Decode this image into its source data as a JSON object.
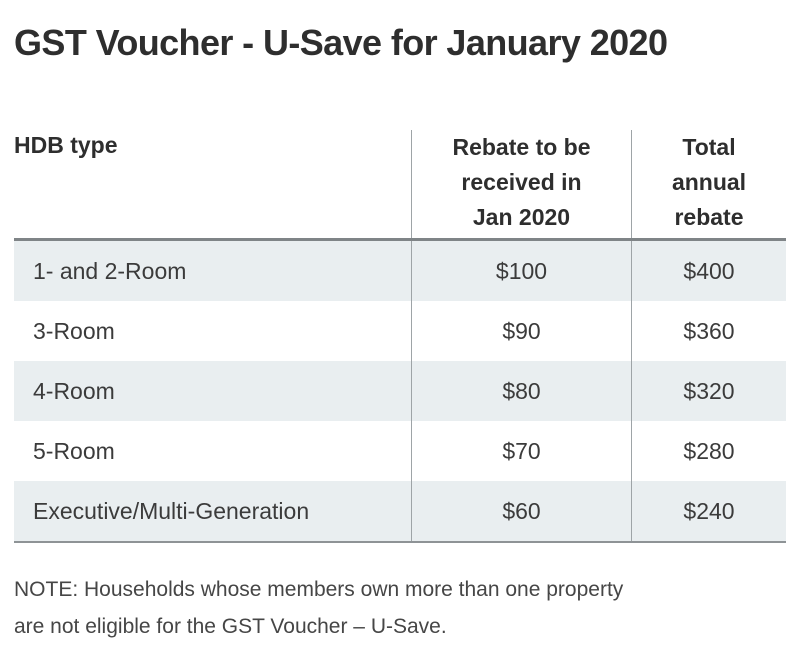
{
  "title": "GST Voucher - U-Save for January 2020",
  "table": {
    "header": {
      "col1": "HDB type",
      "col2_lines": [
        "Rebate to be",
        "received in",
        "Jan 2020"
      ],
      "col3_lines": [
        "Total",
        "annual",
        "rebate"
      ]
    },
    "rows": [
      {
        "hdb_type": "1- and 2-Room",
        "jan_rebate": "$100",
        "annual_rebate": "$400"
      },
      {
        "hdb_type": "3-Room",
        "jan_rebate": "$90",
        "annual_rebate": "$360"
      },
      {
        "hdb_type": "4-Room",
        "jan_rebate": "$80",
        "annual_rebate": "$320"
      },
      {
        "hdb_type": "5-Room",
        "jan_rebate": "$70",
        "annual_rebate": "$280"
      },
      {
        "hdb_type": "Executive/Multi-Generation",
        "jan_rebate": "$60",
        "annual_rebate": "$240"
      }
    ]
  },
  "note": {
    "line1": "NOTE: Households whose members own more than one property",
    "line2": "are not eligible for the GST Voucher – U-Save."
  },
  "colors": {
    "row_alt": "#e9eef0",
    "divider": "#9ea4a7",
    "border_top": "#7f8487",
    "border_bottom": "#8e9396",
    "title_text": "#2e2e2e",
    "body_text": "#3b3b3b",
    "note_text": "#464646"
  },
  "chart_data": {
    "type": "table",
    "title": "GST Voucher - U-Save for January 2020",
    "columns": [
      "HDB type",
      "Rebate to be received in Jan 2020",
      "Total annual rebate"
    ],
    "rows": [
      [
        "1- and 2-Room",
        100,
        400
      ],
      [
        "3-Room",
        90,
        360
      ],
      [
        "4-Room",
        80,
        320
      ],
      [
        "5-Room",
        70,
        280
      ],
      [
        "Executive/Multi-Generation",
        60,
        240
      ]
    ],
    "units": "$",
    "note": "NOTE: Households whose members own more than one property are not eligible for the GST Voucher – U-Save."
  }
}
